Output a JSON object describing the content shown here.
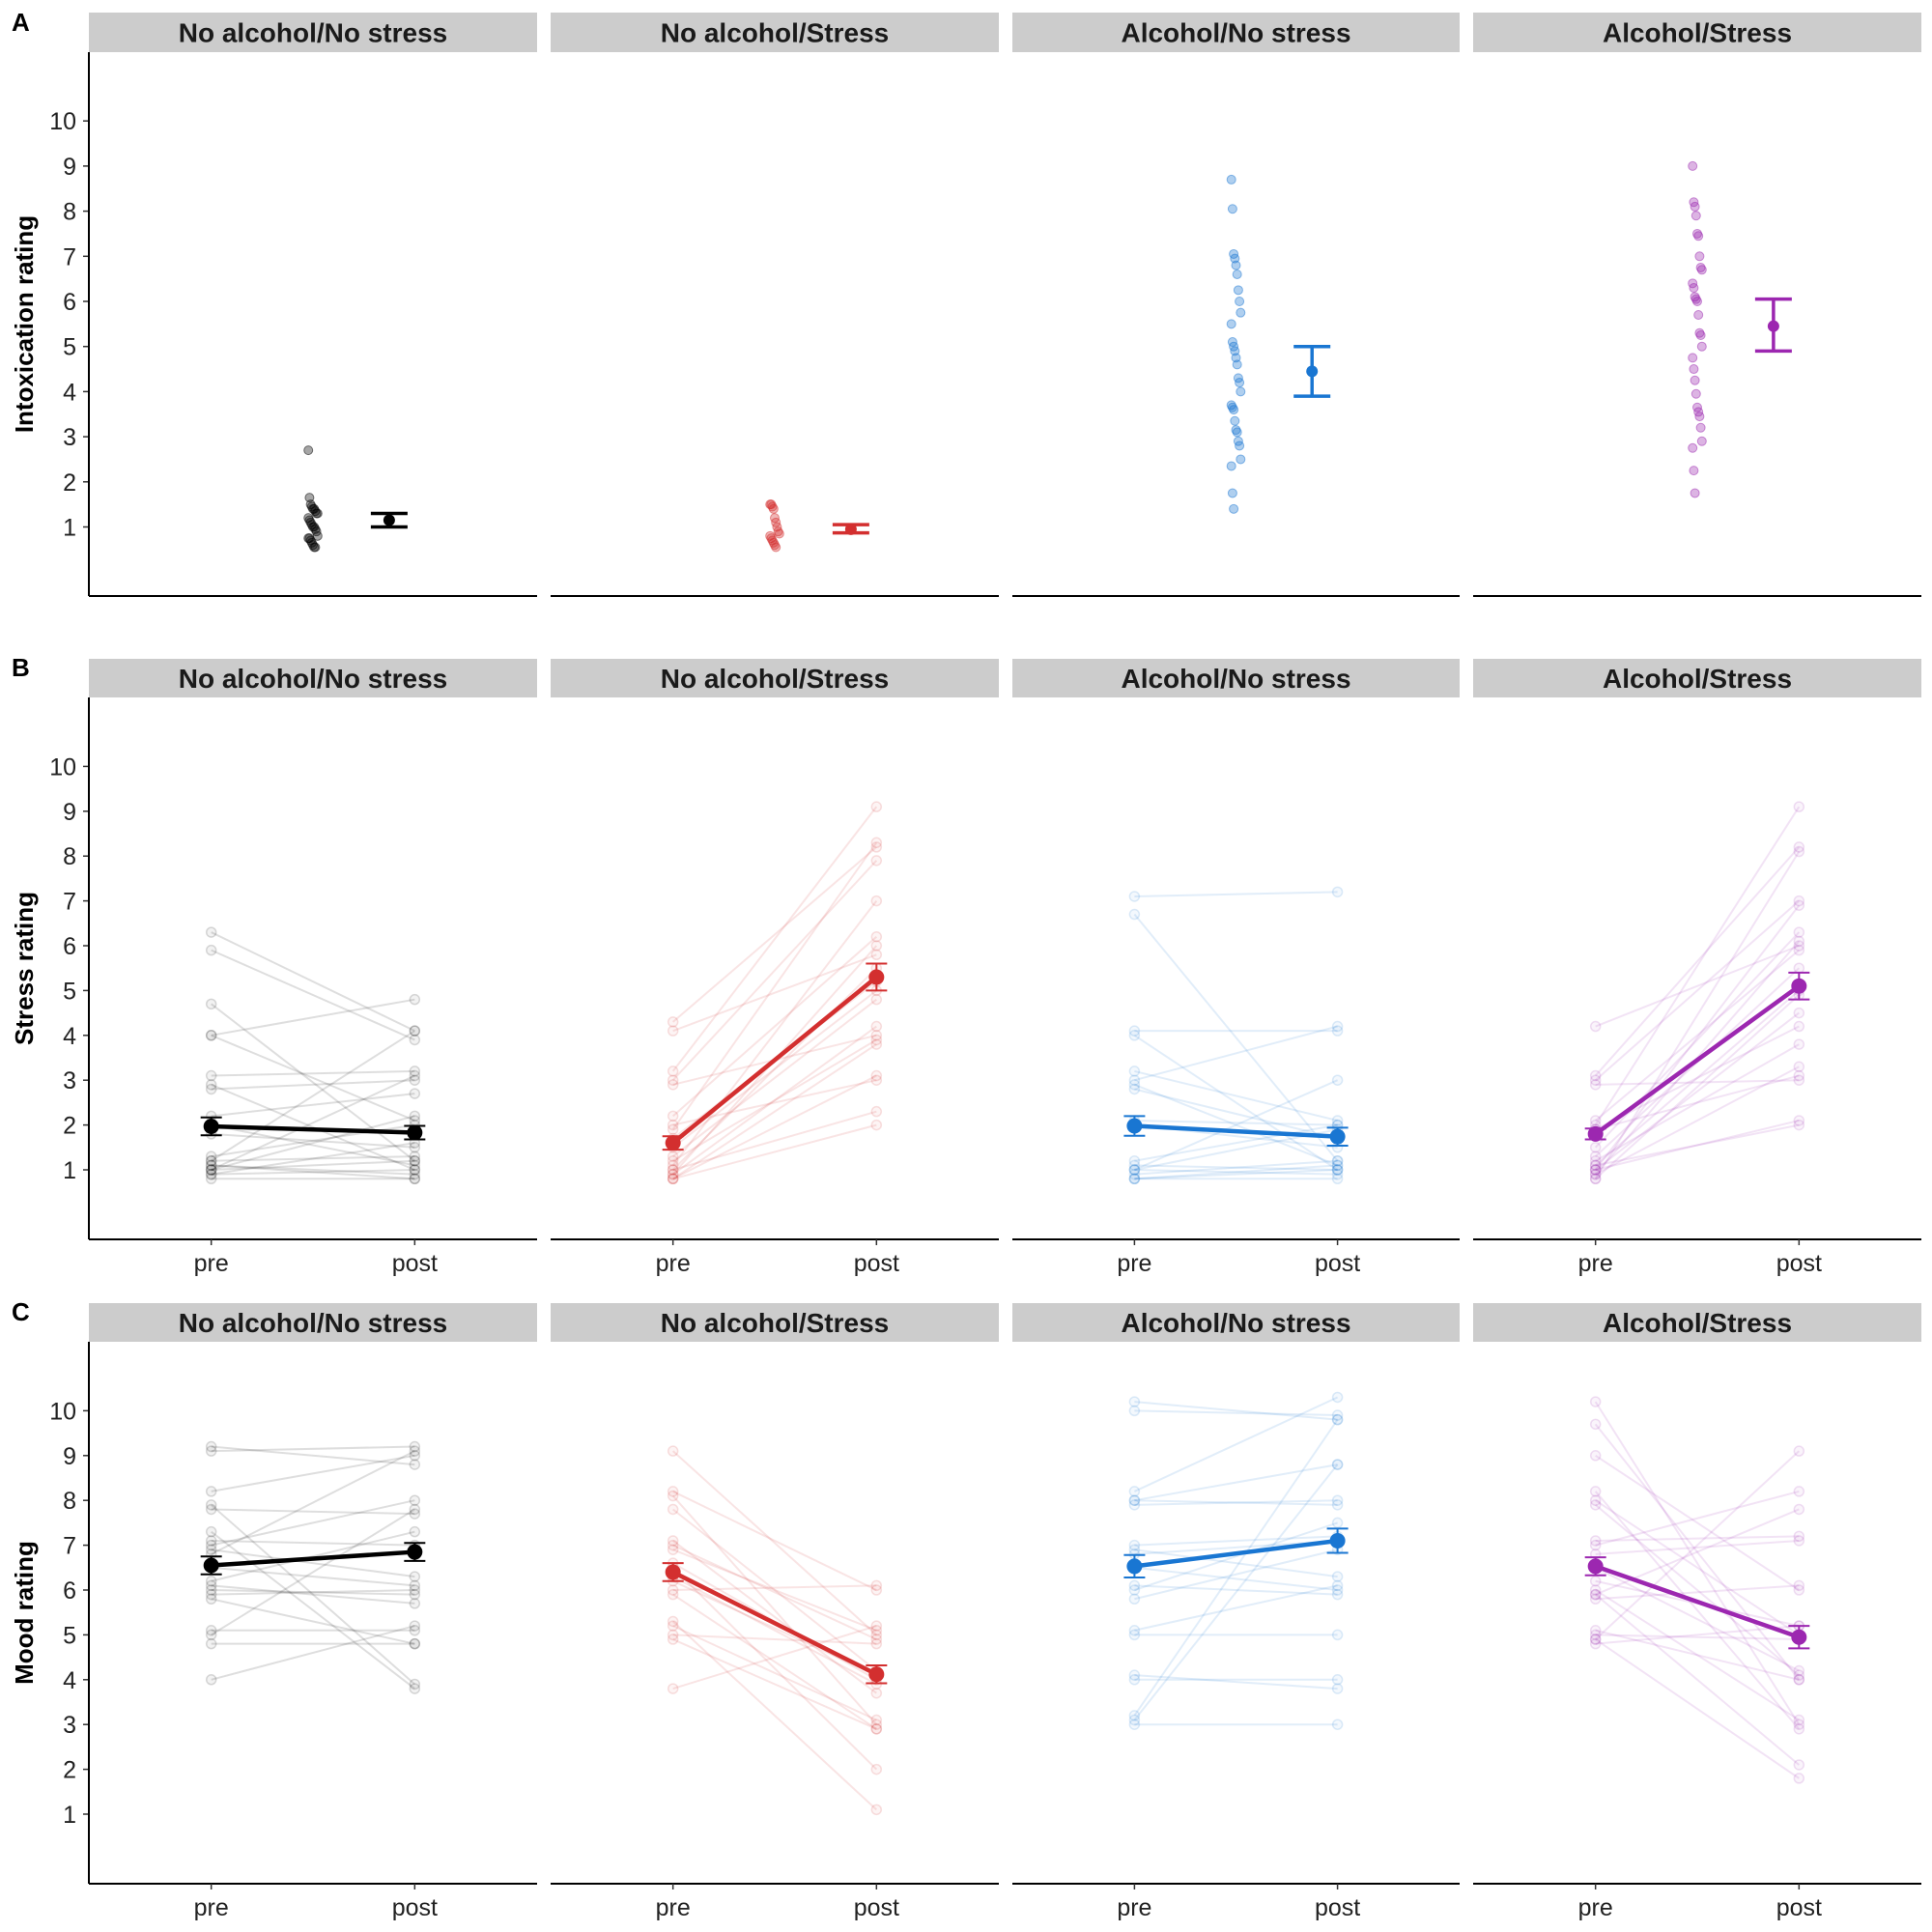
{
  "chart_data": [
    {
      "type": "scatter",
      "panel_label": "A",
      "ylabel": "Intoxication rating",
      "yticks": [
        "1",
        "2",
        "3",
        "4",
        "5",
        "6",
        "7",
        "8",
        "9",
        "10"
      ],
      "ylim": [
        -0.53,
        11.52
      ],
      "facets": [
        {
          "title": "No alcohol/No stress",
          "color": "#000000",
          "mean": 1.15,
          "ci": [
            1.0,
            1.3
          ],
          "points": [
            2.7,
            1.65,
            1.5,
            1.45,
            1.4,
            1.4,
            1.35,
            1.3,
            1.3,
            1.2,
            1.15,
            1.1,
            1.05,
            1.0,
            1.0,
            0.95,
            0.9,
            0.8,
            0.75,
            0.75,
            0.7,
            0.65,
            0.6,
            0.55,
            0.55
          ]
        },
        {
          "title": "No alcohol/Stress",
          "color": "#D32F2F",
          "mean": 0.95,
          "ci": [
            0.87,
            1.05
          ],
          "points": [
            1.5,
            1.5,
            1.45,
            1.4,
            1.2,
            1.1,
            1.0,
            0.9,
            0.85,
            0.8,
            0.75,
            0.7,
            0.65,
            0.6,
            0.55
          ]
        },
        {
          "title": "Alcohol/No stress",
          "color": "#1976D2",
          "mean": 4.45,
          "ci": [
            3.9,
            5.0
          ],
          "points": [
            8.7,
            8.05,
            7.05,
            6.95,
            6.8,
            6.6,
            6.25,
            6.0,
            5.75,
            5.5,
            5.1,
            5.0,
            4.9,
            4.75,
            4.6,
            4.3,
            4.2,
            4.0,
            3.7,
            3.65,
            3.6,
            3.35,
            3.15,
            3.1,
            2.9,
            2.8,
            2.5,
            2.35,
            1.75,
            1.4
          ]
        },
        {
          "title": "Alcohol/Stress",
          "color": "#9C27B0",
          "mean": 5.45,
          "ci": [
            4.9,
            6.05
          ],
          "points": [
            9.0,
            8.2,
            8.1,
            7.9,
            7.5,
            7.45,
            7.0,
            6.75,
            6.7,
            6.4,
            6.3,
            6.1,
            6.05,
            6.0,
            5.7,
            5.3,
            5.25,
            5.0,
            4.75,
            4.5,
            4.25,
            3.95,
            3.65,
            3.55,
            3.45,
            3.2,
            2.9,
            2.75,
            2.25,
            1.75
          ]
        }
      ]
    },
    {
      "type": "line",
      "panel_label": "B",
      "ylabel": "Stress rating",
      "x": [
        "pre",
        "post"
      ],
      "yticks": [
        "1",
        "2",
        "3",
        "4",
        "5",
        "6",
        "7",
        "8",
        "9",
        "10"
      ],
      "ylim": [
        -0.55,
        11.55
      ],
      "facets": [
        {
          "title": "No alcohol/No stress",
          "color": "#000000",
          "mean": [
            1.97,
            1.83
          ],
          "se": [
            0.2,
            0.15
          ],
          "pairs": [
            [
              6.3,
              4.1
            ],
            [
              5.9,
              3.9
            ],
            [
              4.7,
              1.2
            ],
            [
              4.0,
              4.8
            ],
            [
              4.0,
              2.1
            ],
            [
              3.1,
              3.2
            ],
            [
              2.9,
              1.0
            ],
            [
              2.8,
              3.0
            ],
            [
              2.2,
              2.7
            ],
            [
              2.0,
              1.1
            ],
            [
              1.8,
              1.5
            ],
            [
              1.3,
              2.0
            ],
            [
              1.2,
              1.3
            ],
            [
              1.1,
              0.9
            ],
            [
              1.0,
              1.2
            ],
            [
              1.0,
              3.1
            ],
            [
              0.9,
              1.0
            ],
            [
              0.8,
              0.8
            ],
            [
              1.2,
              4.1
            ],
            [
              1.0,
              2.2
            ],
            [
              0.9,
              1.6
            ],
            [
              1.1,
              0.8
            ]
          ]
        },
        {
          "title": "No alcohol/Stress",
          "color": "#D32F2F",
          "mean": [
            1.6,
            5.3
          ],
          "se": [
            0.15,
            0.3
          ],
          "pairs": [
            [
              4.3,
              8.2
            ],
            [
              4.1,
              5.8
            ],
            [
              3.2,
              9.1
            ],
            [
              3.0,
              7.9
            ],
            [
              2.9,
              4.0
            ],
            [
              2.2,
              6.2
            ],
            [
              2.0,
              3.0
            ],
            [
              1.9,
              8.3
            ],
            [
              1.5,
              5.0
            ],
            [
              1.2,
              3.9
            ],
            [
              1.1,
              7.0
            ],
            [
              1.0,
              5.5
            ],
            [
              0.9,
              4.2
            ],
            [
              0.8,
              3.1
            ],
            [
              0.8,
              2.0
            ],
            [
              1.0,
              2.3
            ],
            [
              0.9,
              6.0
            ],
            [
              1.3,
              4.8
            ],
            [
              0.8,
              3.8
            ],
            [
              1.7,
              5.2
            ]
          ]
        },
        {
          "title": "Alcohol/No stress",
          "color": "#1976D2",
          "mean": [
            1.98,
            1.74
          ],
          "se": [
            0.22,
            0.2
          ],
          "pairs": [
            [
              7.1,
              7.2
            ],
            [
              6.7,
              1.2
            ],
            [
              4.1,
              4.1
            ],
            [
              4.0,
              1.0
            ],
            [
              3.2,
              2.1
            ],
            [
              3.0,
              4.2
            ],
            [
              2.9,
              1.1
            ],
            [
              2.8,
              1.7
            ],
            [
              2.1,
              2.0
            ],
            [
              2.0,
              1.5
            ],
            [
              1.1,
              1.0
            ],
            [
              1.0,
              3.0
            ],
            [
              1.0,
              0.9
            ],
            [
              0.9,
              1.2
            ],
            [
              0.8,
              1.0
            ],
            [
              0.8,
              0.8
            ],
            [
              1.2,
              2.0
            ],
            [
              0.8,
              1.1
            ],
            [
              1.0,
              1.9
            ]
          ]
        },
        {
          "title": "Alcohol/Stress",
          "color": "#9C27B0",
          "mean": [
            1.8,
            5.1
          ],
          "se": [
            0.12,
            0.3
          ],
          "pairs": [
            [
              4.2,
              6.0
            ],
            [
              3.1,
              8.2
            ],
            [
              3.0,
              7.0
            ],
            [
              2.9,
              3.0
            ],
            [
              2.1,
              5.9
            ],
            [
              2.0,
              9.1
            ],
            [
              1.9,
              4.2
            ],
            [
              1.5,
              6.3
            ],
            [
              1.2,
              3.8
            ],
            [
              1.1,
              5.0
            ],
            [
              1.0,
              2.1
            ],
            [
              0.9,
              3.3
            ],
            [
              0.8,
              8.1
            ],
            [
              0.8,
              4.9
            ],
            [
              1.0,
              6.9
            ],
            [
              1.1,
              2.0
            ],
            [
              1.3,
              5.5
            ],
            [
              1.9,
              3.1
            ],
            [
              0.9,
              6.1
            ],
            [
              1.0,
              4.5
            ]
          ]
        }
      ]
    },
    {
      "type": "line",
      "panel_label": "C",
      "ylabel": "Mood rating",
      "x": [
        "pre",
        "post"
      ],
      "yticks": [
        "1",
        "2",
        "3",
        "4",
        "5",
        "6",
        "7",
        "8",
        "9",
        "10"
      ],
      "ylim": [
        -0.55,
        11.55
      ],
      "facets": [
        {
          "title": "No alcohol/No stress",
          "color": "#000000",
          "mean": [
            6.55,
            6.85
          ],
          "se": [
            0.2,
            0.2
          ],
          "pairs": [
            [
              9.2,
              8.8
            ],
            [
              9.1,
              9.2
            ],
            [
              8.2,
              9.0
            ],
            [
              7.9,
              3.9
            ],
            [
              7.8,
              7.7
            ],
            [
              7.1,
              7.0
            ],
            [
              7.0,
              8.0
            ],
            [
              6.9,
              6.3
            ],
            [
              6.5,
              6.1
            ],
            [
              6.2,
              7.3
            ],
            [
              6.0,
              5.9
            ],
            [
              5.9,
              6.0
            ],
            [
              5.8,
              4.8
            ],
            [
              5.1,
              5.1
            ],
            [
              5.0,
              7.8
            ],
            [
              4.8,
              4.8
            ],
            [
              4.0,
              5.2
            ],
            [
              6.8,
              9.1
            ],
            [
              6.1,
              5.7
            ],
            [
              7.3,
              3.8
            ]
          ]
        },
        {
          "title": "No alcohol/Stress",
          "color": "#D32F2F",
          "mean": [
            6.4,
            4.12
          ],
          "se": [
            0.2,
            0.2
          ],
          "pairs": [
            [
              9.1,
              5.0
            ],
            [
              8.2,
              6.0
            ],
            [
              8.1,
              3.0
            ],
            [
              7.8,
              4.2
            ],
            [
              7.0,
              4.9
            ],
            [
              6.9,
              5.1
            ],
            [
              6.5,
              2.0
            ],
            [
              6.3,
              3.9
            ],
            [
              6.2,
              4.1
            ],
            [
              6.0,
              6.1
            ],
            [
              5.3,
              1.1
            ],
            [
              5.2,
              3.1
            ],
            [
              5.0,
              4.8
            ],
            [
              4.9,
              2.9
            ],
            [
              3.8,
              5.2
            ],
            [
              7.1,
              3.7
            ],
            [
              6.6,
              4.0
            ],
            [
              5.9,
              2.9
            ]
          ]
        },
        {
          "title": "Alcohol/No stress",
          "color": "#1976D2",
          "mean": [
            6.53,
            7.1
          ],
          "se": [
            0.25,
            0.27
          ],
          "pairs": [
            [
              10.2,
              9.8
            ],
            [
              10.0,
              9.9
            ],
            [
              8.2,
              10.3
            ],
            [
              8.0,
              7.9
            ],
            [
              8.0,
              8.8
            ],
            [
              7.9,
              8.0
            ],
            [
              7.0,
              7.2
            ],
            [
              6.9,
              6.3
            ],
            [
              6.5,
              6.0
            ],
            [
              6.1,
              5.9
            ],
            [
              6.0,
              7.5
            ],
            [
              5.8,
              6.9
            ],
            [
              5.1,
              6.1
            ],
            [
              5.0,
              5.0
            ],
            [
              4.1,
              3.8
            ],
            [
              4.0,
              4.0
            ],
            [
              3.2,
              9.8
            ],
            [
              3.1,
              8.8
            ],
            [
              3.0,
              3.0
            ],
            [
              6.8,
              7.1
            ]
          ]
        },
        {
          "title": "Alcohol/Stress",
          "color": "#9C27B0",
          "mean": [
            6.53,
            4.95
          ],
          "se": [
            0.2,
            0.25
          ],
          "pairs": [
            [
              10.2,
              3.0
            ],
            [
              9.7,
              4.0
            ],
            [
              9.0,
              6.0
            ],
            [
              8.2,
              2.9
            ],
            [
              8.0,
              5.0
            ],
            [
              7.9,
              4.1
            ],
            [
              7.1,
              7.2
            ],
            [
              7.0,
              8.2
            ],
            [
              6.8,
              7.1
            ],
            [
              6.5,
              4.2
            ],
            [
              6.2,
              5.2
            ],
            [
              6.0,
              3.1
            ],
            [
              5.9,
              2.1
            ],
            [
              5.8,
              6.1
            ],
            [
              5.0,
              4.9
            ],
            [
              4.9,
              1.8
            ],
            [
              4.8,
              5.2
            ],
            [
              4.9,
              9.1
            ],
            [
              5.1,
              4.0
            ],
            [
              5.9,
              7.8
            ]
          ]
        }
      ]
    }
  ]
}
